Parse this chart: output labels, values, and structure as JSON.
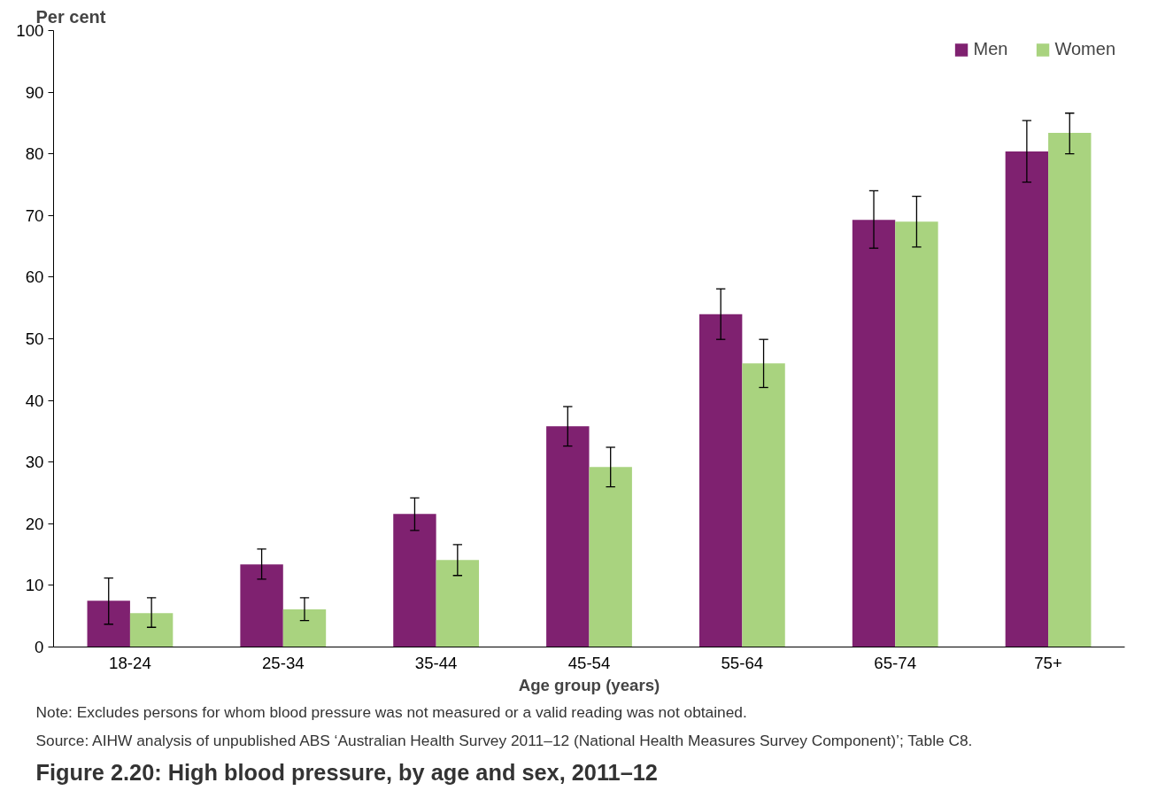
{
  "chart_data": {
    "type": "bar",
    "title": "Figure 2.20: High blood pressure, by age and sex, 2011–12",
    "xlabel": "Age group (years)",
    "ylabel": "Per cent",
    "categories": [
      "18-24",
      "25-34",
      "35-44",
      "45-54",
      "55-64",
      "65-74",
      "75+"
    ],
    "series": [
      {
        "name": "Men",
        "color": "#7f2170",
        "values": [
          7.5,
          13.4,
          21.6,
          35.8,
          54,
          69.3,
          80.4
        ],
        "errors": [
          [
            3.7,
            11.2
          ],
          [
            11,
            15.9
          ],
          [
            18.9,
            24.2
          ],
          [
            32.6,
            39
          ],
          [
            49.9,
            58.1
          ],
          [
            64.7,
            74
          ],
          [
            75.4,
            85.4
          ]
        ]
      },
      {
        "name": "Women",
        "color": "#a9d37f",
        "values": [
          5.5,
          6.1,
          14.1,
          29.2,
          46,
          69,
          83.4
        ],
        "errors": [
          [
            3.2,
            8
          ],
          [
            4.3,
            8
          ],
          [
            11.6,
            16.6
          ],
          [
            26,
            32.4
          ],
          [
            42.1,
            49.9
          ],
          [
            64.9,
            73.1
          ],
          [
            80,
            86.6
          ]
        ]
      }
    ],
    "ylim": [
      0,
      100
    ],
    "yticks": [
      0,
      10,
      20,
      30,
      40,
      50,
      60,
      70,
      80,
      90,
      100
    ],
    "grid": false,
    "legend": "top right",
    "annotations": [
      "Note: Excludes persons for whom blood pressure was not measured or a valid reading was not obtained.",
      "Source: AIHW analysis of unpublished ABS ‘Australian Health Survey 2011–12 (National Health Measures Survey Component)’; Table C8."
    ]
  }
}
